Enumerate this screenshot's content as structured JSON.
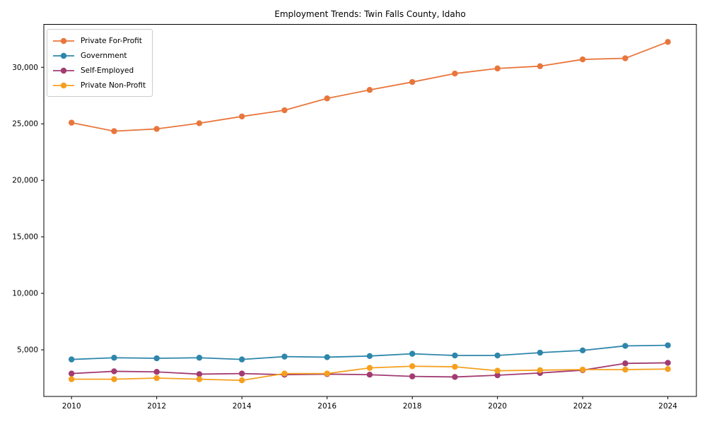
{
  "title": "Employment Trends: Twin Falls County, Idaho",
  "chart_data": {
    "type": "line",
    "title": "Employment Trends: Twin Falls County, Idaho",
    "xlabel": "",
    "ylabel": "",
    "x": [
      2010,
      2011,
      2012,
      2013,
      2014,
      2015,
      2016,
      2017,
      2018,
      2019,
      2020,
      2021,
      2022,
      2023,
      2024
    ],
    "series": [
      {
        "name": "Private For-Profit",
        "color": "#E8763C",
        "values": [
          25100,
          24350,
          24550,
          25050,
          25650,
          26200,
          27250,
          28000,
          28700,
          29450,
          29900,
          30100,
          30700,
          30800,
          32250
        ]
      },
      {
        "name": "Government",
        "color": "#2E86AB",
        "values": [
          4150,
          4300,
          4250,
          4300,
          4150,
          4400,
          4350,
          4450,
          4650,
          4500,
          4500,
          4750,
          4950,
          5350,
          5400
        ]
      },
      {
        "name": "Self-Employed",
        "color": "#A23B72",
        "values": [
          2900,
          3100,
          3050,
          2850,
          2900,
          2800,
          2850,
          2800,
          2650,
          2600,
          2750,
          2950,
          3200,
          3800,
          3850
        ]
      },
      {
        "name": "Private Non-Profit",
        "color": "#F5A01E",
        "values": [
          2400,
          2400,
          2500,
          2400,
          2300,
          2900,
          2900,
          3400,
          3550,
          3500,
          3150,
          3200,
          3250,
          3250,
          3300
        ]
      }
    ],
    "xticks": [
      2010,
      2012,
      2014,
      2016,
      2018,
      2020,
      2022,
      2024
    ],
    "xtick_labels": [
      "2010",
      "2012",
      "2014",
      "2016",
      "2018",
      "2020",
      "2022",
      "2024"
    ],
    "yticks": [
      5000,
      10000,
      15000,
      20000,
      25000,
      30000
    ],
    "ytick_labels": [
      "5,000",
      "10,000",
      "15,000",
      "20,000",
      "25,000",
      "30,000"
    ],
    "xlim": [
      2009.35,
      2024.67
    ],
    "ylim": [
      875,
      33800
    ],
    "grid": false,
    "legend_position": "upper left",
    "axis_color": "#000000",
    "tick_label_color": "#000000"
  }
}
